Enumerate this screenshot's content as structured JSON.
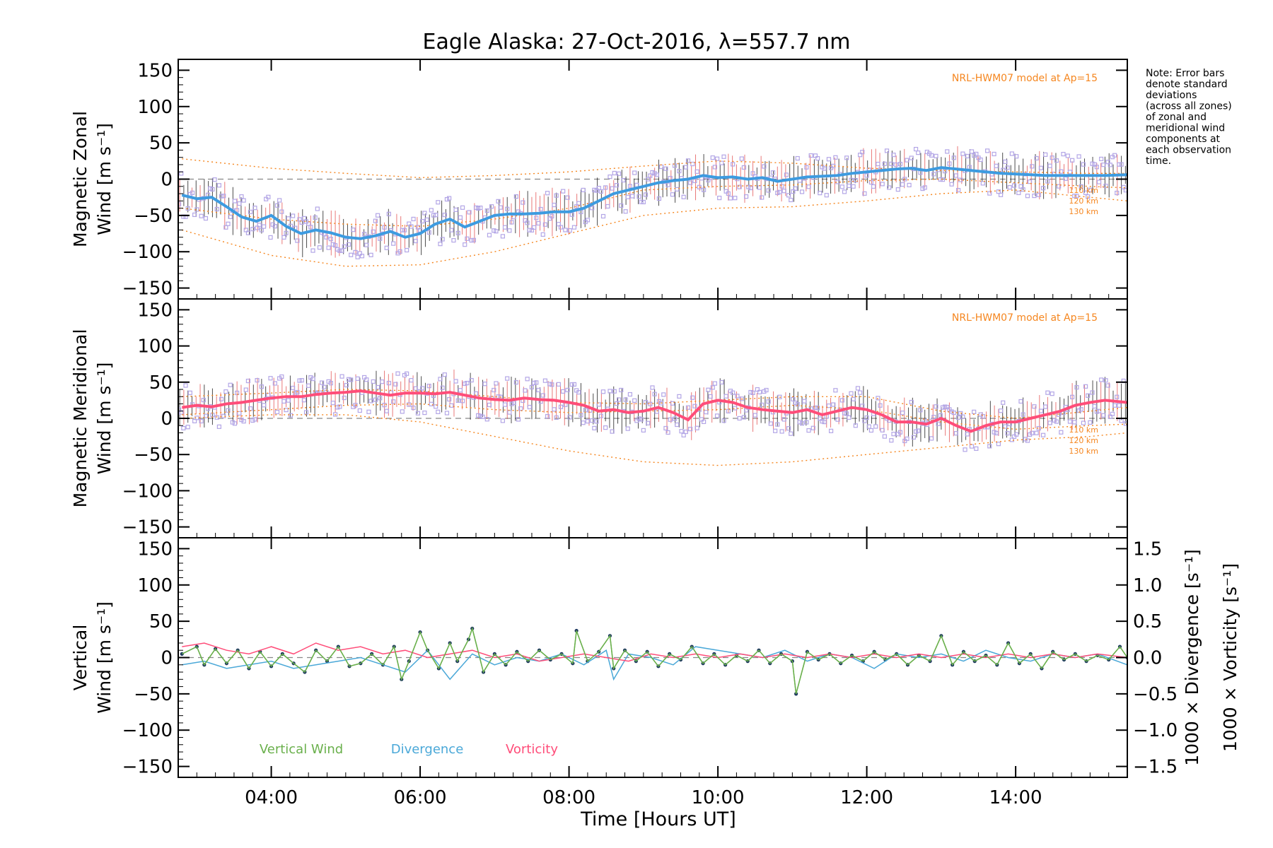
{
  "chart_data": [
    {
      "panel": "zonal",
      "type": "line",
      "title": "Eagle Alaska: 27-Oct-2016, λ=557.7 nm",
      "ylabel_line1": "Magnetic Zonal",
      "ylabel_line2": "Wind [m s⁻¹]",
      "ylim": [
        -165,
        165
      ],
      "yticks": [
        "150",
        "100",
        "50",
        "0",
        "−50",
        "−100",
        "−150"
      ],
      "model_label": "NRL-HWM07 model at Ap=15",
      "altitude_labels": [
        "110 km",
        "120 km",
        "130 km"
      ],
      "series": [
        {
          "name": "mean",
          "color": "#3d9be0",
          "x": [
            2.8,
            3.0,
            3.2,
            3.4,
            3.6,
            3.8,
            4.0,
            4.2,
            4.4,
            4.6,
            4.8,
            5.0,
            5.2,
            5.4,
            5.6,
            5.8,
            6.0,
            6.2,
            6.4,
            6.6,
            6.8,
            7.0,
            7.2,
            7.4,
            7.6,
            7.8,
            8.0,
            8.2,
            8.4,
            8.6,
            8.8,
            9.0,
            9.2,
            9.4,
            9.6,
            9.8,
            10.0,
            10.2,
            10.4,
            10.6,
            10.8,
            11.0,
            11.2,
            11.4,
            11.6,
            11.8,
            12.0,
            12.2,
            12.4,
            12.6,
            12.8,
            13.0,
            13.2,
            13.4,
            13.6,
            13.8,
            14.0,
            14.2,
            14.4,
            14.6,
            14.8,
            15.0,
            15.2,
            15.5
          ],
          "y": [
            -22,
            -27,
            -25,
            -38,
            -52,
            -58,
            -50,
            -65,
            -75,
            -70,
            -74,
            -80,
            -82,
            -78,
            -72,
            -80,
            -75,
            -62,
            -55,
            -66,
            -58,
            -50,
            -48,
            -48,
            -47,
            -45,
            -45,
            -40,
            -30,
            -20,
            -15,
            -10,
            -5,
            -2,
            0,
            5,
            2,
            3,
            0,
            2,
            -3,
            0,
            3,
            4,
            5,
            8,
            10,
            12,
            14,
            15,
            12,
            16,
            14,
            12,
            10,
            8,
            7,
            6,
            5,
            5,
            5,
            5,
            5,
            6
          ]
        },
        {
          "name": "model_upper",
          "color": "#f5861f",
          "style": "dotted",
          "x": [
            2.8,
            4.0,
            5.0,
            6.0,
            7.0,
            8.0,
            9.0,
            10.0,
            11.0,
            12.0,
            13.0,
            14.0,
            15.0,
            15.5
          ],
          "y": [
            28,
            15,
            8,
            2,
            5,
            10,
            18,
            25,
            22,
            15,
            12,
            10,
            8,
            8
          ]
        },
        {
          "name": "model_mid",
          "color": "#f5861f",
          "style": "dotted",
          "x": [
            2.8,
            4.0,
            5.0,
            6.0,
            7.0,
            8.0,
            9.0,
            10.0,
            11.0,
            12.0,
            13.0,
            14.0,
            15.0,
            15.5
          ],
          "y": [
            -40,
            -55,
            -62,
            -65,
            -55,
            -40,
            -15,
            -10,
            -8,
            -2,
            0,
            -5,
            -10,
            -12
          ]
        },
        {
          "name": "model_lower",
          "color": "#f5861f",
          "style": "dotted",
          "x": [
            2.8,
            4.0,
            5.0,
            6.0,
            7.0,
            8.0,
            9.0,
            10.0,
            11.0,
            12.0,
            13.0,
            14.0,
            15.0,
            15.5
          ],
          "y": [
            -70,
            -105,
            -120,
            -118,
            -100,
            -75,
            -50,
            -40,
            -38,
            -30,
            -20,
            -15,
            -25,
            -30
          ]
        }
      ]
    },
    {
      "panel": "meridional",
      "type": "line",
      "ylabel_line1": "Magnetic Meridional",
      "ylabel_line2": "Wind [m s⁻¹]",
      "ylim": [
        -165,
        165
      ],
      "yticks": [
        "150",
        "100",
        "50",
        "0",
        "−50",
        "−100",
        "−150"
      ],
      "model_label": "NRL-HWM07 model at Ap=15",
      "altitude_labels": [
        "110 km",
        "120 km",
        "130 km"
      ],
      "series": [
        {
          "name": "mean",
          "color": "#ff4d79",
          "x": [
            2.8,
            3.0,
            3.2,
            3.4,
            3.6,
            3.8,
            4.0,
            4.2,
            4.4,
            4.6,
            4.8,
            5.0,
            5.2,
            5.4,
            5.6,
            5.8,
            6.0,
            6.2,
            6.4,
            6.6,
            6.8,
            7.0,
            7.2,
            7.4,
            7.6,
            7.8,
            8.0,
            8.2,
            8.4,
            8.6,
            8.8,
            9.0,
            9.2,
            9.4,
            9.6,
            9.8,
            10.0,
            10.2,
            10.4,
            10.6,
            10.8,
            11.0,
            11.2,
            11.4,
            11.6,
            11.8,
            12.0,
            12.2,
            12.4,
            12.6,
            12.8,
            13.0,
            13.2,
            13.4,
            13.6,
            13.8,
            14.0,
            14.2,
            14.4,
            14.6,
            14.8,
            15.0,
            15.2,
            15.5
          ],
          "y": [
            15,
            18,
            16,
            20,
            22,
            25,
            28,
            30,
            30,
            33,
            35,
            36,
            38,
            35,
            32,
            35,
            35,
            34,
            36,
            32,
            28,
            26,
            25,
            28,
            26,
            25,
            22,
            18,
            10,
            12,
            8,
            10,
            15,
            8,
            -2,
            20,
            25,
            22,
            15,
            12,
            10,
            8,
            12,
            5,
            10,
            15,
            12,
            5,
            -5,
            -5,
            -8,
            0,
            -10,
            -18,
            -10,
            -5,
            -5,
            0,
            5,
            10,
            18,
            22,
            25,
            22
          ]
        },
        {
          "name": "model_upper",
          "color": "#f5861f",
          "style": "dotted",
          "x": [
            2.8,
            4.0,
            5.0,
            6.0,
            7.0,
            8.0,
            9.0,
            10.0,
            11.0,
            12.0,
            13.0,
            14.0,
            15.0,
            15.5
          ],
          "y": [
            30,
            35,
            40,
            38,
            30,
            22,
            20,
            25,
            30,
            30,
            10,
            0,
            10,
            15
          ]
        },
        {
          "name": "model_mid",
          "color": "#f5861f",
          "style": "dotted",
          "x": [
            2.8,
            4.0,
            5.0,
            6.0,
            7.0,
            8.0,
            9.0,
            10.0,
            11.0,
            12.0,
            13.0,
            14.0,
            15.0,
            15.5
          ],
          "y": [
            5,
            12,
            18,
            20,
            12,
            8,
            10,
            12,
            18,
            12,
            -5,
            -15,
            -10,
            -8
          ]
        },
        {
          "name": "model_lower",
          "color": "#f5861f",
          "style": "dotted",
          "x": [
            2.8,
            4.0,
            5.0,
            6.0,
            7.0,
            8.0,
            9.0,
            10.0,
            11.0,
            12.0,
            13.0,
            14.0,
            15.0,
            15.5
          ],
          "y": [
            0,
            5,
            5,
            -5,
            -25,
            -45,
            -60,
            -65,
            -60,
            -50,
            -40,
            -30,
            -25,
            -20
          ]
        }
      ]
    },
    {
      "panel": "vertical",
      "type": "line",
      "ylabel_line1": "Vertical",
      "ylabel_line2": "Wind [m s⁻¹]",
      "ylabel_color": "#6ab04c",
      "ylim": [
        -165,
        165
      ],
      "yticks": [
        "150",
        "100",
        "50",
        "0",
        "−50",
        "−100",
        "−150"
      ],
      "right_axis": {
        "ylim": [
          -1.65,
          1.65
        ],
        "yticks": [
          "1.5",
          "1.0",
          "0.5",
          "0.0",
          "−0.5",
          "−1.0",
          "−1.5"
        ],
        "label_divergence": "1000 × Divergence [s⁻¹]",
        "label_vorticity": "1000 × Vorticity [s⁻¹]",
        "divergence_color": "#4aa8d8",
        "vorticity_color": "#ff4d79"
      },
      "legend": [
        "Vertical Wind",
        "Divergence",
        "Vorticity"
      ],
      "series": [
        {
          "name": "Vertical Wind",
          "color": "#6ab04c",
          "x": [
            2.8,
            3.0,
            3.1,
            3.25,
            3.4,
            3.55,
            3.7,
            3.85,
            4.0,
            4.15,
            4.3,
            4.45,
            4.6,
            4.75,
            4.9,
            5.05,
            5.2,
            5.35,
            5.5,
            5.65,
            5.75,
            5.85,
            6.0,
            6.1,
            6.25,
            6.4,
            6.5,
            6.65,
            6.7,
            6.85,
            7.0,
            7.15,
            7.3,
            7.45,
            7.6,
            7.75,
            7.9,
            8.05,
            8.1,
            8.25,
            8.4,
            8.55,
            8.6,
            8.75,
            8.9,
            9.05,
            9.2,
            9.35,
            9.5,
            9.65,
            9.8,
            9.95,
            10.1,
            10.25,
            10.4,
            10.55,
            10.7,
            10.85,
            11.0,
            11.05,
            11.2,
            11.35,
            11.5,
            11.65,
            11.8,
            11.95,
            12.1,
            12.25,
            12.4,
            12.55,
            12.7,
            12.85,
            13.0,
            13.15,
            13.3,
            13.45,
            13.6,
            13.75,
            13.9,
            14.05,
            14.2,
            14.35,
            14.5,
            14.65,
            14.8,
            14.95,
            15.1,
            15.25,
            15.4,
            15.5
          ],
          "y": [
            5,
            15,
            -10,
            12,
            -8,
            10,
            -15,
            8,
            -12,
            5,
            -8,
            -20,
            10,
            -5,
            15,
            -12,
            -8,
            5,
            -10,
            15,
            -30,
            -5,
            35,
            10,
            -15,
            20,
            -5,
            25,
            40,
            -20,
            5,
            -10,
            8,
            -5,
            10,
            -3,
            5,
            -8,
            37,
            -5,
            8,
            30,
            -15,
            10,
            -5,
            8,
            -12,
            5,
            -3,
            15,
            -8,
            5,
            -10,
            3,
            -5,
            10,
            -8,
            5,
            -5,
            -50,
            8,
            -3,
            5,
            -8,
            3,
            -5,
            8,
            -3,
            5,
            -10,
            3,
            -5,
            30,
            -10,
            8,
            -5,
            3,
            -10,
            20,
            -8,
            5,
            -15,
            8,
            -3,
            5,
            -5,
            3,
            -3,
            15,
            0
          ]
        },
        {
          "name": "Divergence",
          "color": "#4aa8d8",
          "x": [
            2.8,
            3.1,
            3.4,
            3.7,
            4.0,
            4.3,
            4.6,
            4.9,
            5.2,
            5.5,
            5.8,
            6.1,
            6.4,
            6.7,
            7.0,
            7.3,
            7.6,
            7.9,
            8.2,
            8.5,
            8.6,
            8.8,
            9.1,
            9.4,
            9.7,
            10.0,
            10.3,
            10.6,
            10.9,
            11.2,
            11.5,
            11.8,
            12.1,
            12.4,
            12.7,
            13.0,
            13.3,
            13.6,
            13.9,
            14.2,
            14.5,
            14.8,
            15.1,
            15.5
          ],
          "y": [
            -0.1,
            -0.05,
            -0.15,
            -0.1,
            -0.05,
            -0.15,
            -0.1,
            -0.05,
            0.0,
            -0.1,
            -0.2,
            0.1,
            -0.3,
            0.05,
            -0.1,
            0.0,
            -0.05,
            0.05,
            -0.1,
            0.1,
            -0.3,
            0.05,
            0.0,
            -0.1,
            0.15,
            0.1,
            0.05,
            0.0,
            0.1,
            -0.05,
            0.05,
            0.0,
            -0.15,
            0.05,
            0.0,
            0.05,
            -0.05,
            0.1,
            0.0,
            -0.05,
            0.05,
            0.0,
            0.05,
            -0.1
          ]
        },
        {
          "name": "Vorticity",
          "color": "#ff4d79",
          "x": [
            2.8,
            3.1,
            3.4,
            3.7,
            4.0,
            4.3,
            4.6,
            4.9,
            5.2,
            5.5,
            5.8,
            6.1,
            6.4,
            6.7,
            7.0,
            7.3,
            7.6,
            7.9,
            8.2,
            8.5,
            8.8,
            9.1,
            9.4,
            9.7,
            10.0,
            10.3,
            10.6,
            10.9,
            11.2,
            11.5,
            11.8,
            12.1,
            12.4,
            12.7,
            13.0,
            13.3,
            13.6,
            13.9,
            14.2,
            14.5,
            14.8,
            15.1,
            15.5
          ],
          "y": [
            0.15,
            0.2,
            0.1,
            0.05,
            0.15,
            0.05,
            0.2,
            0.1,
            0.15,
            0.05,
            0.1,
            0.0,
            0.05,
            0.1,
            0.0,
            0.05,
            -0.05,
            0.0,
            0.05,
            0.0,
            -0.05,
            0.05,
            0.0,
            0.05,
            0.0,
            0.05,
            0.0,
            0.05,
            0.0,
            0.05,
            0.0,
            0.05,
            0.0,
            0.05,
            0.0,
            0.05,
            0.0,
            0.05,
            0.0,
            0.05,
            0.0,
            0.05,
            0.0
          ]
        }
      ]
    }
  ],
  "x_axis": {
    "label": "Time [Hours UT]",
    "xlim": [
      2.75,
      15.5
    ],
    "ticks": [
      {
        "value": 4,
        "label": "04:00"
      },
      {
        "value": 6,
        "label": "06:00"
      },
      {
        "value": 8,
        "label": "08:00"
      },
      {
        "value": 10,
        "label": "10:00"
      },
      {
        "value": 12,
        "label": "12:00"
      },
      {
        "value": 14,
        "label": "14:00"
      }
    ]
  },
  "note": [
    "Note: Error bars",
    "denote standard",
    "deviations",
    "(across all zones)",
    "of zonal and",
    "meridional wind",
    "components at",
    "each observation",
    "time."
  ],
  "colors": {
    "model": "#f5861f",
    "scatter": "#b3a6e6",
    "errorbar_black": "#000000",
    "errorbar_red": "#e04040",
    "zero_line": "#888888"
  }
}
